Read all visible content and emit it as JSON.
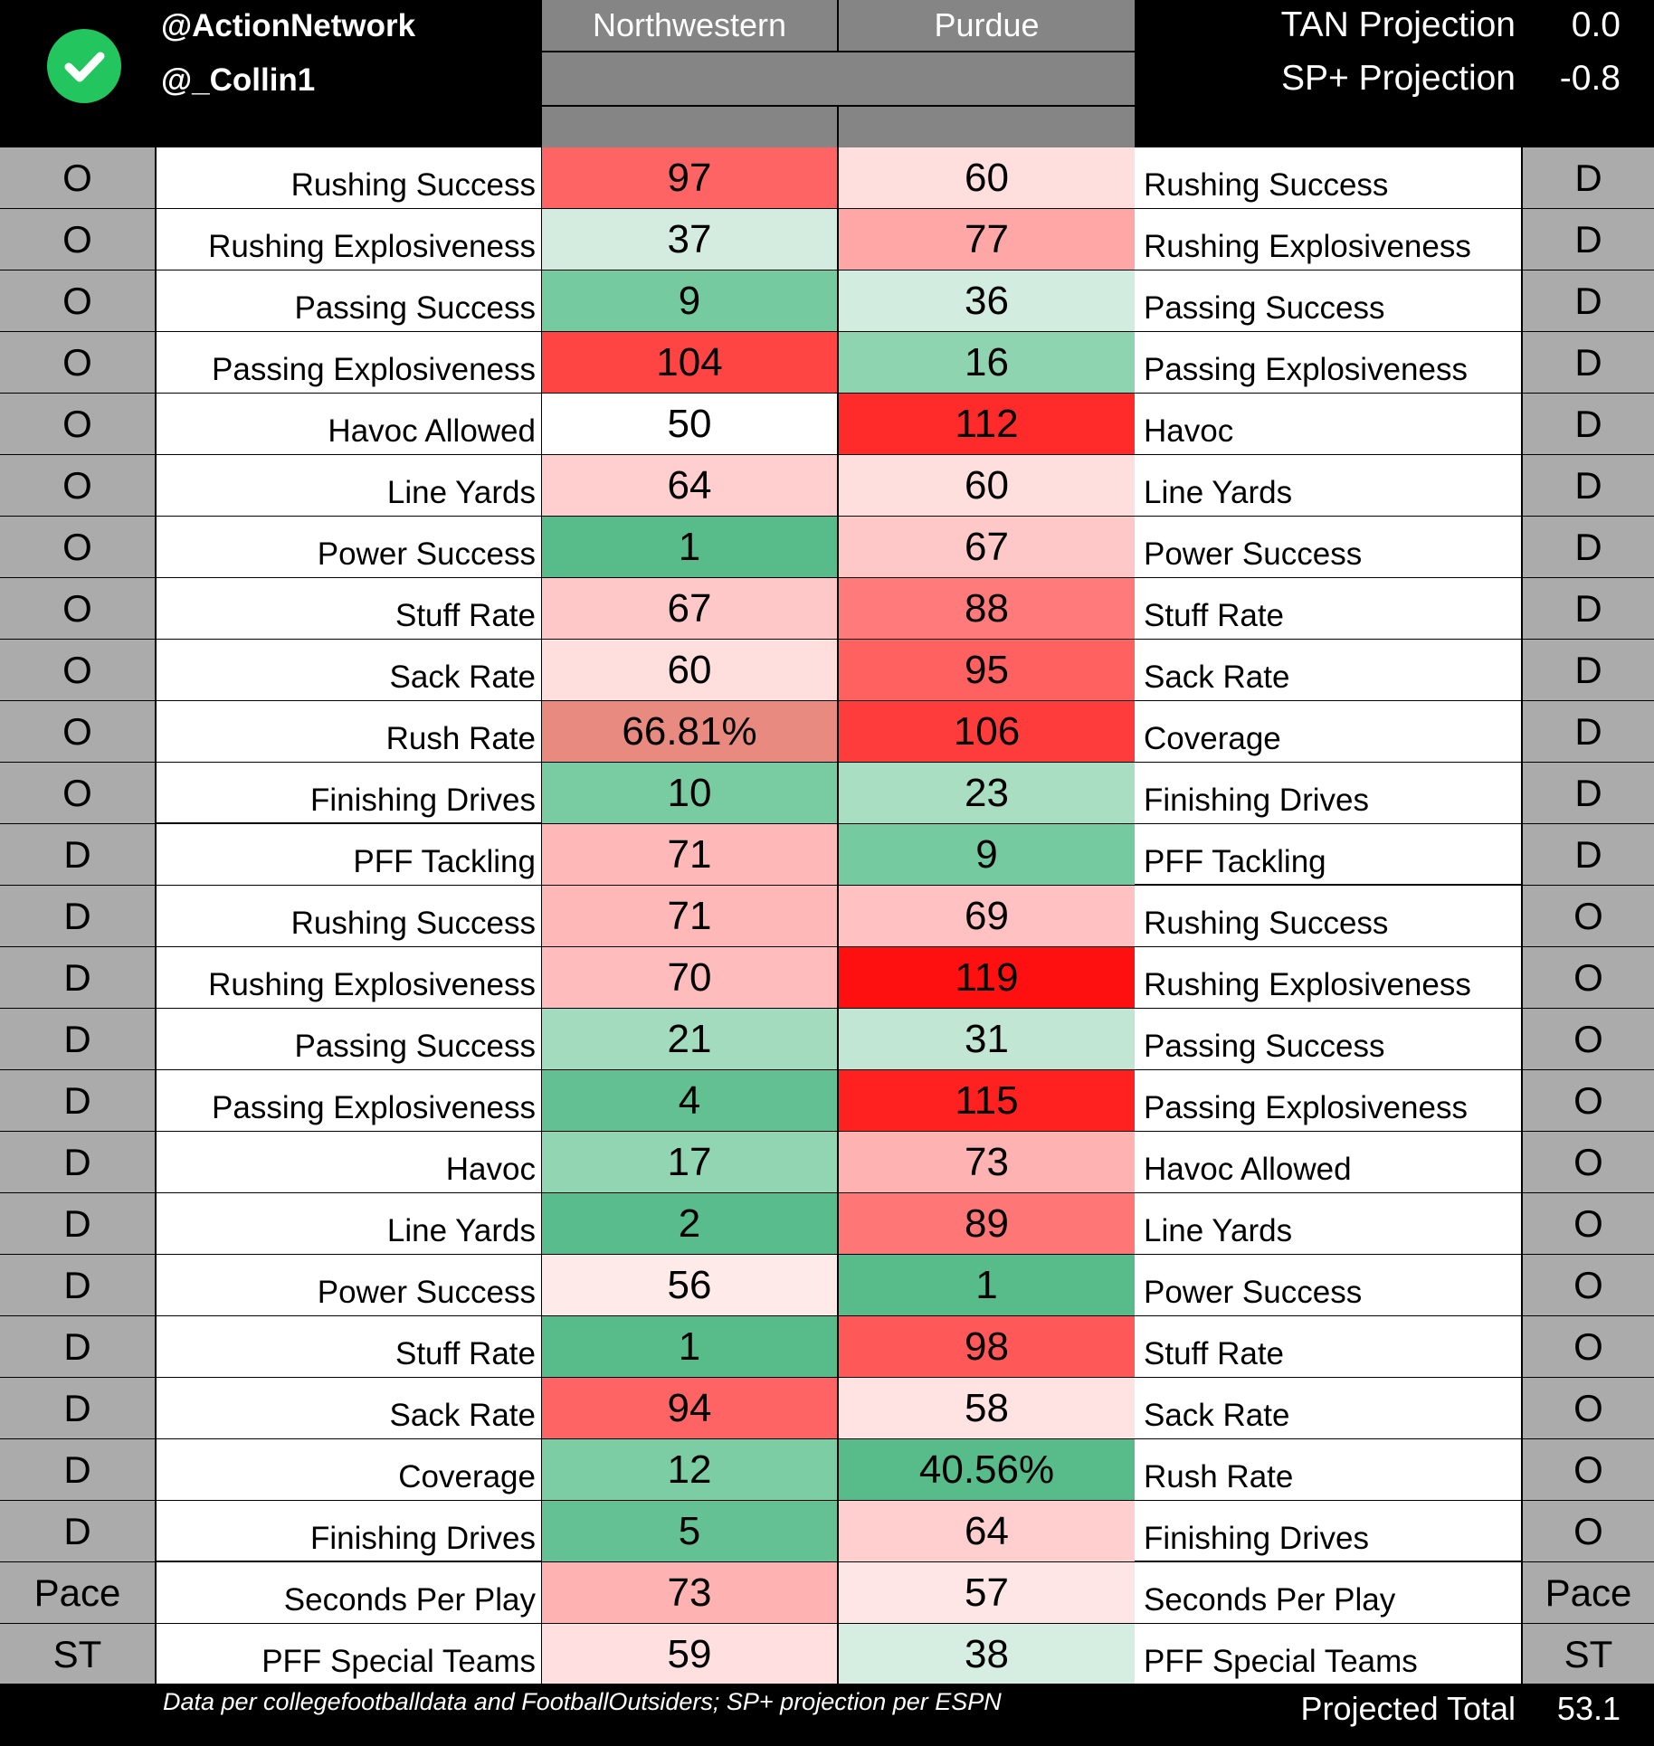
{
  "header": {
    "handle1": "@ActionNetwork",
    "handle2": "@_Collin1",
    "team_left": "Northwestern",
    "team_right": "Purdue",
    "tan_label": "TAN Projection",
    "tan_value": "0.0",
    "sp_label": "SP+ Projection",
    "sp_value": "-0.8"
  },
  "rows": [
    {
      "ls": "O",
      "ll": "Rushing Success",
      "lv": "97",
      "lc": "#ff6464",
      "rv": "60",
      "rc": "#ffdede",
      "rl": "Rushing Success",
      "rs": "D"
    },
    {
      "ls": "O",
      "ll": "Rushing Explosiveness",
      "lv": "37",
      "lc": "#d4ece0",
      "rv": "77",
      "rc": "#ffa7a7",
      "rl": "Rushing Explosiveness",
      "rs": "D"
    },
    {
      "ls": "O",
      "ll": "Passing Success",
      "lv": "9",
      "lc": "#76caa0",
      "rv": "36",
      "rc": "#d2ecdf",
      "rl": "Passing Success",
      "rs": "D"
    },
    {
      "ls": "O",
      "ll": "Passing Explosiveness",
      "lv": "104",
      "lc": "#ff4444",
      "rv": "16",
      "rc": "#8fd4b1",
      "rl": "Passing Explosiveness",
      "rs": "D"
    },
    {
      "ls": "O",
      "ll": "Havoc Allowed",
      "lv": "50",
      "lc": "#ffffff",
      "rv": "112",
      "rc": "#ff2a2a",
      "rl": "Havoc",
      "rs": "D"
    },
    {
      "ls": "O",
      "ll": "Line Yards",
      "lv": "64",
      "lc": "#ffcfcf",
      "rv": "60",
      "rc": "#ffdede",
      "rl": "Line Yards",
      "rs": "D"
    },
    {
      "ls": "O",
      "ll": "Power Success",
      "lv": "1",
      "lc": "#57bb8a",
      "rv": "67",
      "rc": "#ffc8c8",
      "rl": "Power Success",
      "rs": "D"
    },
    {
      "ls": "O",
      "ll": "Stuff Rate",
      "lv": "67",
      "lc": "#ffc8c8",
      "rv": "88",
      "rc": "#ff7a7a",
      "rl": "Stuff Rate",
      "rs": "D"
    },
    {
      "ls": "O",
      "ll": "Sack Rate",
      "lv": "60",
      "lc": "#ffdede",
      "rv": "95",
      "rc": "#ff6060",
      "rl": "Sack Rate",
      "rs": "D"
    },
    {
      "ls": "O",
      "ll": "Rush Rate",
      "lv": "66.81%",
      "lc": "#e98a80",
      "rv": "106",
      "rc": "#ff3c3c",
      "rl": "Coverage",
      "rs": "D"
    },
    {
      "ls": "O",
      "ll": "Finishing Drives",
      "lv": "10",
      "lc": "#79cba2",
      "rv": "23",
      "rc": "#a9dec3",
      "rl": "Finishing Drives",
      "rs": "D"
    },
    {
      "ls": "D",
      "ll": "PFF Tackling",
      "lv": "71",
      "lc": "#ffb8b8",
      "rv": "9",
      "rc": "#76caa0",
      "rl": "PFF Tackling",
      "rs": "D"
    },
    {
      "ls": "D",
      "ll": "Rushing Success",
      "lv": "71",
      "lc": "#ffb8b8",
      "rv": "69",
      "rc": "#ffc1c1",
      "rl": "Rushing Success",
      "rs": "O"
    },
    {
      "ls": "D",
      "ll": "Rushing Explosiveness",
      "lv": "70",
      "lc": "#ffbcbc",
      "rv": "119",
      "rc": "#ff1010",
      "rl": "Rushing Explosiveness",
      "rs": "O"
    },
    {
      "ls": "D",
      "ll": "Passing Success",
      "lv": "21",
      "lc": "#a3dbbf",
      "rv": "31",
      "rc": "#c2e6d4",
      "rl": "Passing Success",
      "rs": "O"
    },
    {
      "ls": "D",
      "ll": "Passing Explosiveness",
      "lv": "4",
      "lc": "#62c093",
      "rv": "115",
      "rc": "#ff2020",
      "rl": "Passing Explosiveness",
      "rs": "O"
    },
    {
      "ls": "D",
      "ll": "Havoc",
      "lv": "17",
      "lc": "#92d5b3",
      "rv": "73",
      "rc": "#ffb2b2",
      "rl": "Havoc Allowed",
      "rs": "O"
    },
    {
      "ls": "D",
      "ll": "Line Yards",
      "lv": "2",
      "lc": "#59bc8c",
      "rv": "89",
      "rc": "#ff7676",
      "rl": "Line Yards",
      "rs": "O"
    },
    {
      "ls": "D",
      "ll": "Power Success",
      "lv": "56",
      "lc": "#ffeaea",
      "rv": "1",
      "rc": "#57bb8a",
      "rl": "Power Success",
      "rs": "O"
    },
    {
      "ls": "D",
      "ll": "Stuff Rate",
      "lv": "1",
      "lc": "#57bb8a",
      "rv": "98",
      "rc": "#ff5858",
      "rl": "Stuff Rate",
      "rs": "O"
    },
    {
      "ls": "D",
      "ll": "Sack Rate",
      "lv": "94",
      "lc": "#ff6464",
      "rv": "58",
      "rc": "#ffe2e2",
      "rl": "Sack Rate",
      "rs": "O"
    },
    {
      "ls": "D",
      "ll": "Coverage",
      "lv": "12",
      "lc": "#7ccca4",
      "rv": "40.56%",
      "rc": "#57bb8a",
      "rl": "Rush Rate",
      "rs": "O"
    },
    {
      "ls": "D",
      "ll": "Finishing Drives",
      "lv": "5",
      "lc": "#64c194",
      "rv": "64",
      "rc": "#ffcfcf",
      "rl": "Finishing Drives",
      "rs": "O"
    },
    {
      "ls": "Pace",
      "ll": "Seconds Per Play",
      "lv": "73",
      "lc": "#ffb2b2",
      "rv": "57",
      "rc": "#ffe6e6",
      "rl": "Seconds Per Play",
      "rs": "Pace"
    },
    {
      "ls": "ST",
      "ll": "PFF Special Teams",
      "lv": "59",
      "lc": "#ffdfdf",
      "rv": "38",
      "rc": "#d6ede1",
      "rl": "PFF Special Teams",
      "rs": "ST"
    }
  ],
  "footer": {
    "note": "Data per collegefootballdata and FootballOutsiders; SP+ projection per ESPN",
    "total_label": "Projected Total",
    "total_value": "53.1"
  }
}
